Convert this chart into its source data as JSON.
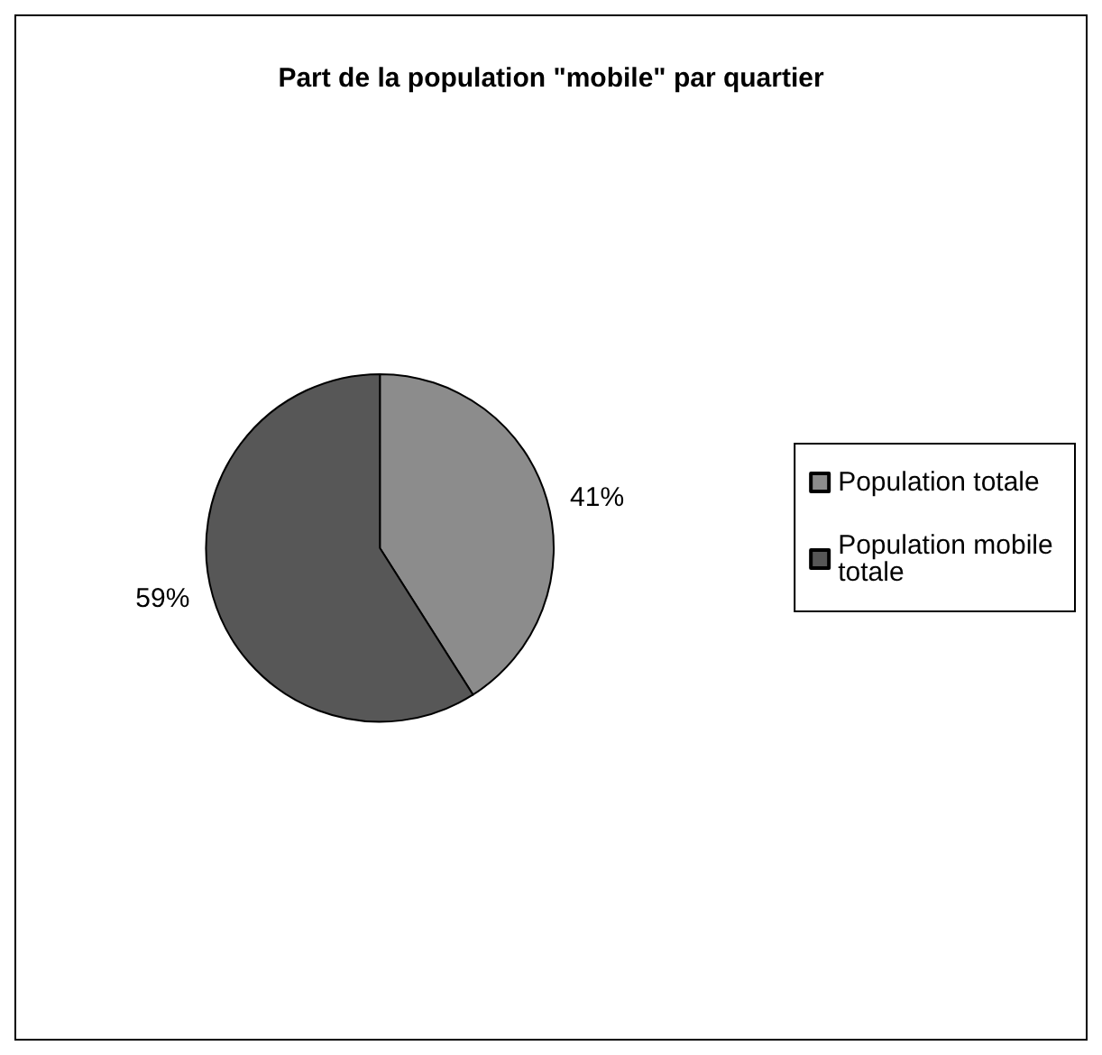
{
  "chart_data": {
    "type": "pie",
    "title": "Part de la population \"mobile\" par quartier",
    "categories": [
      "Population totale",
      "Population mobile totale"
    ],
    "values": [
      41,
      59
    ],
    "value_labels": [
      "41%",
      "59%"
    ],
    "colors": [
      "#8c8c8c",
      "#575757"
    ],
    "legend": "right"
  }
}
